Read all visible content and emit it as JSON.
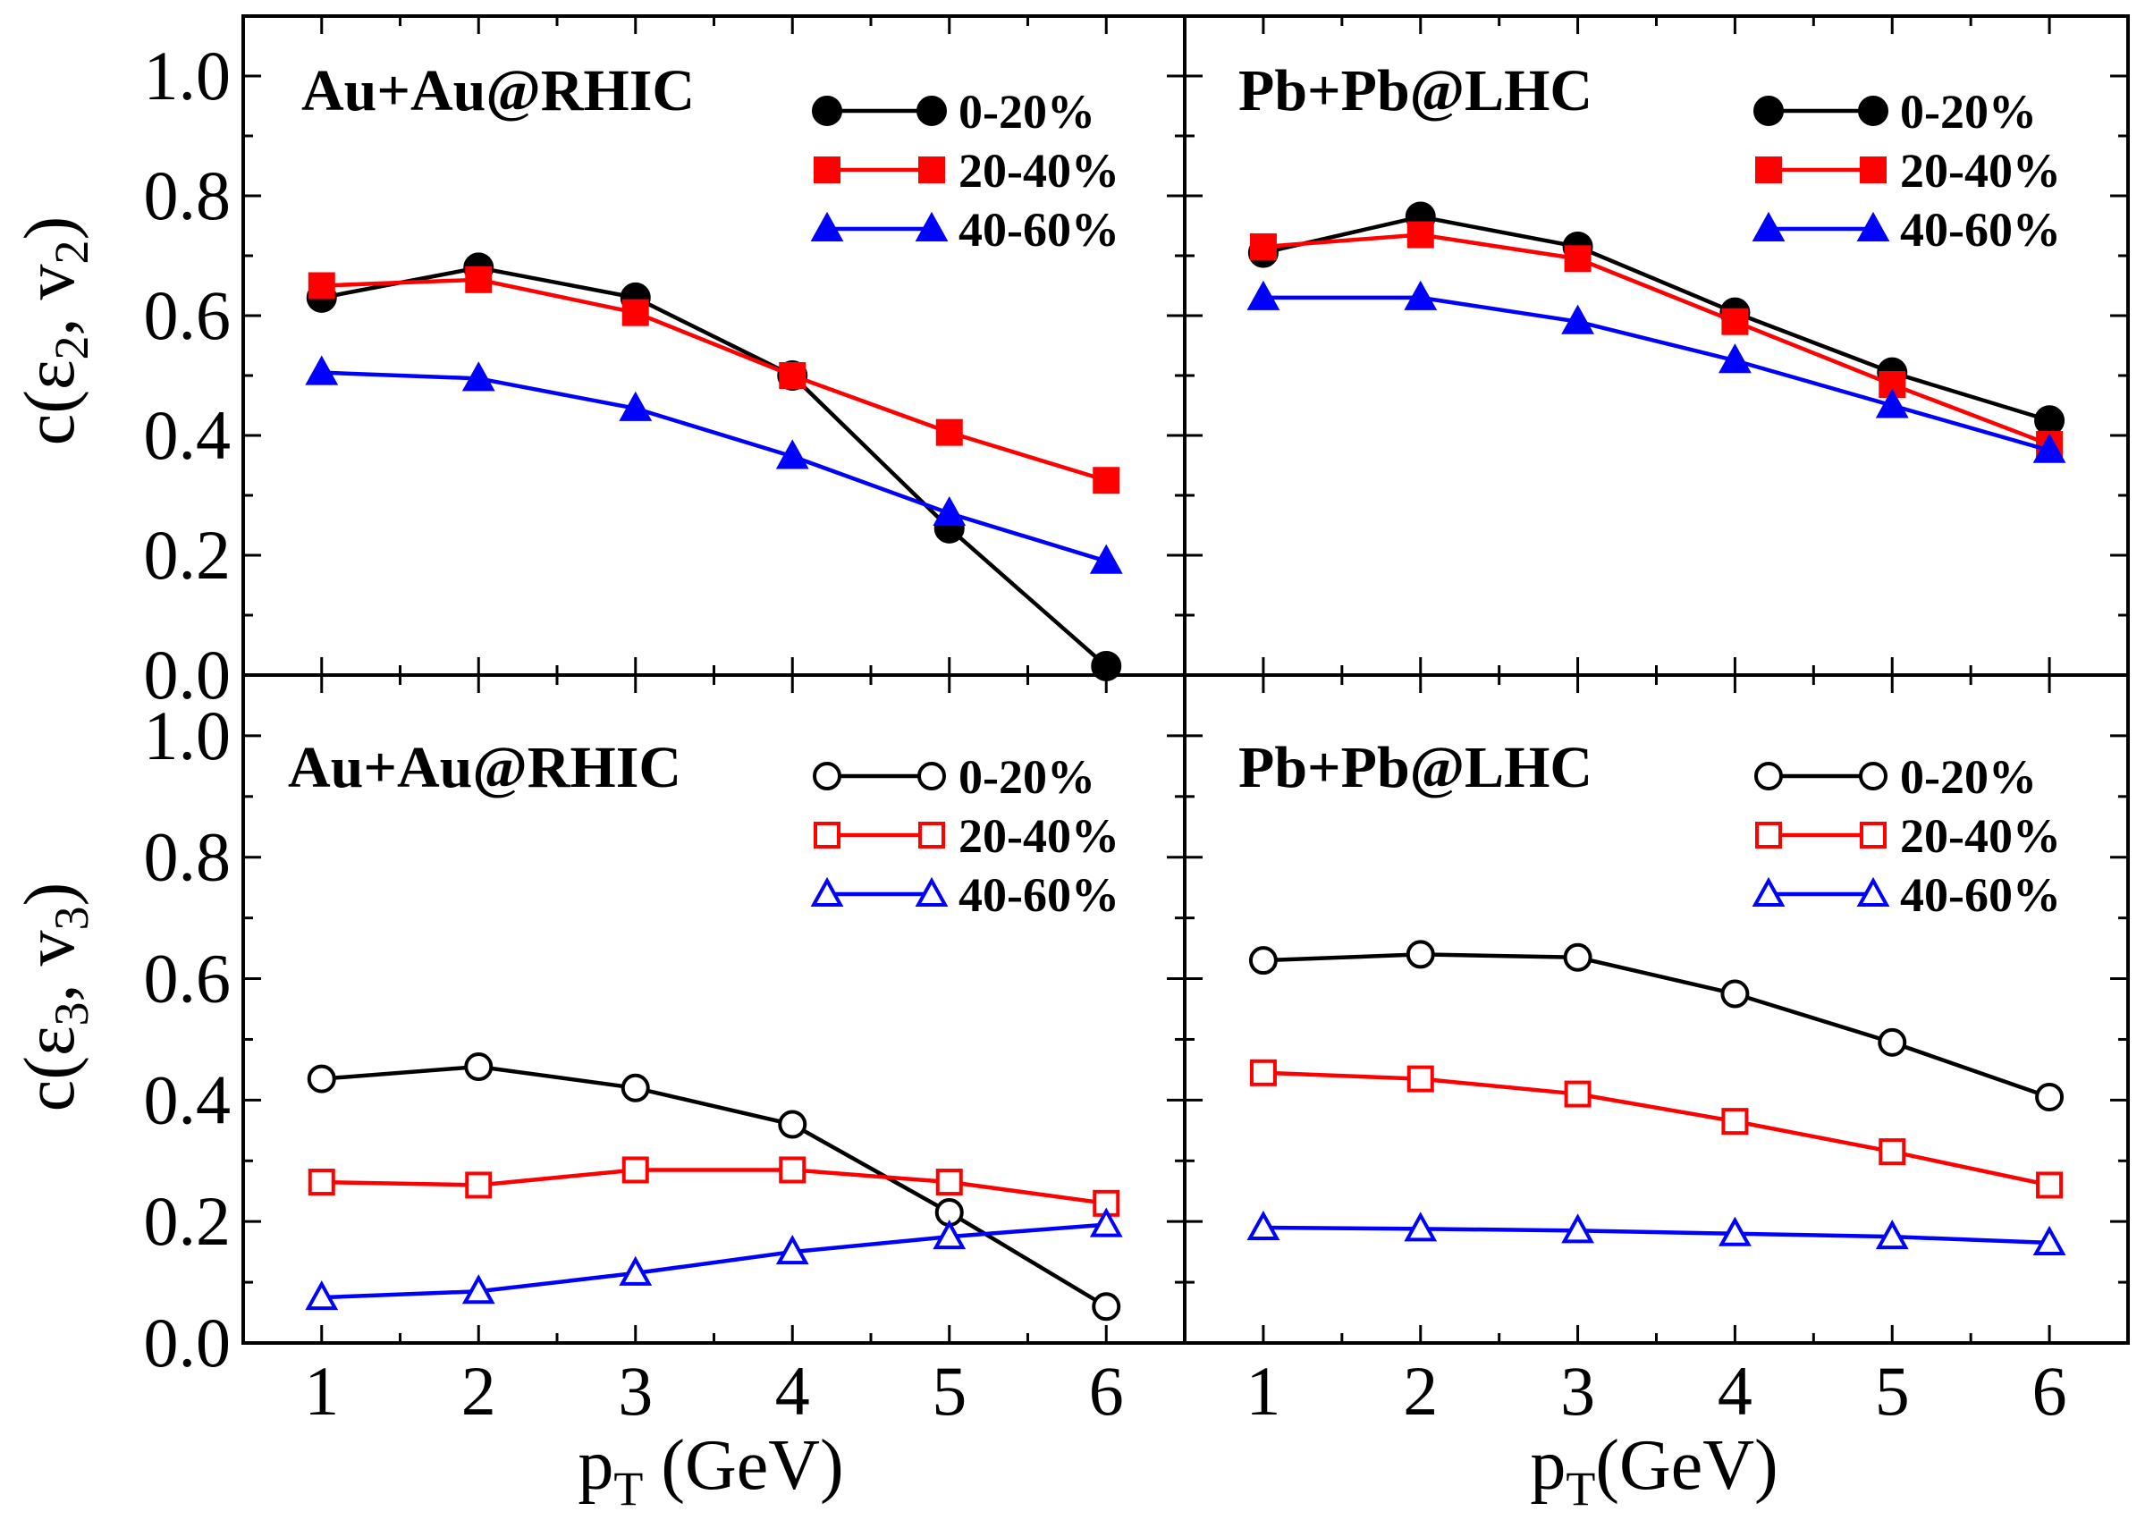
{
  "figure": {
    "y_labels": {
      "top": {
        "prefix": "c(",
        "eps": "ε",
        "eps_sub": "2",
        "comma": ", v",
        "v_sub": "2",
        "suffix": ")"
      },
      "bottom": {
        "prefix": "c(",
        "eps": "ε",
        "eps_sub": "3",
        "comma": ", v",
        "v_sub": "3",
        "suffix": ")"
      }
    },
    "x_labels": {
      "left": {
        "main": "p",
        "sub": "T",
        "rest": " (GeV)"
      },
      "right": {
        "main": "p",
        "sub": "T",
        "rest": "(GeV)"
      }
    },
    "y_tick_labels": [
      "0.0",
      "0.2",
      "0.4",
      "0.6",
      "0.8",
      "1.0"
    ],
    "x_tick_labels": [
      "1",
      "2",
      "3",
      "4",
      "5",
      "6"
    ]
  },
  "chart_data": [
    {
      "type": "line",
      "panel": "top-left",
      "title": "Au+Au@RHIC",
      "ylabel": "c(ε2, v2)",
      "xlabel": "",
      "xlim": [
        0.5,
        6.5
      ],
      "ylim": [
        0.0,
        1.1
      ],
      "x": [
        1,
        2,
        3,
        4,
        5,
        6
      ],
      "legend": "top-right",
      "series": [
        {
          "name": "0-20%",
          "color": "#000000",
          "marker": "circle",
          "filled": true,
          "values": [
            0.63,
            0.68,
            0.63,
            0.5,
            0.245,
            0.015
          ]
        },
        {
          "name": "20-40%",
          "color": "#ff0000",
          "marker": "square",
          "filled": true,
          "values": [
            0.65,
            0.66,
            0.605,
            0.5,
            0.405,
            0.325
          ]
        },
        {
          "name": "40-60%",
          "color": "#0000ff",
          "marker": "triangle",
          "filled": true,
          "values": [
            0.505,
            0.495,
            0.445,
            0.365,
            0.27,
            0.19
          ]
        }
      ]
    },
    {
      "type": "line",
      "panel": "top-right",
      "title": "Pb+Pb@LHC",
      "ylabel": "",
      "xlabel": "",
      "xlim": [
        0.5,
        6.5
      ],
      "ylim": [
        0.0,
        1.1
      ],
      "x": [
        1,
        2,
        3,
        4,
        5,
        6
      ],
      "legend": "top-right",
      "series": [
        {
          "name": "0-20%",
          "color": "#000000",
          "marker": "circle",
          "filled": true,
          "values": [
            0.705,
            0.765,
            0.715,
            0.605,
            0.505,
            0.425
          ]
        },
        {
          "name": "20-40%",
          "color": "#ff0000",
          "marker": "square",
          "filled": true,
          "values": [
            0.715,
            0.735,
            0.695,
            0.59,
            0.485,
            0.385
          ]
        },
        {
          "name": "40-60%",
          "color": "#0000ff",
          "marker": "triangle",
          "filled": true,
          "values": [
            0.63,
            0.63,
            0.59,
            0.525,
            0.45,
            0.375
          ]
        }
      ]
    },
    {
      "type": "line",
      "panel": "bottom-left",
      "title": "Au+Au@RHIC",
      "ylabel": "c(ε3, v3)",
      "xlabel": "pT (GeV)",
      "xlim": [
        0.5,
        6.5
      ],
      "ylim": [
        0.0,
        1.1
      ],
      "x": [
        1,
        2,
        3,
        4,
        5,
        6
      ],
      "legend": "top-right",
      "series": [
        {
          "name": "0-20%",
          "color": "#000000",
          "marker": "circle",
          "filled": false,
          "values": [
            0.435,
            0.455,
            0.42,
            0.36,
            0.215,
            0.06
          ]
        },
        {
          "name": "20-40%",
          "color": "#ff0000",
          "marker": "square",
          "filled": false,
          "values": [
            0.265,
            0.26,
            0.285,
            0.285,
            0.265,
            0.23
          ]
        },
        {
          "name": "40-60%",
          "color": "#0000ff",
          "marker": "triangle",
          "filled": false,
          "values": [
            0.075,
            0.085,
            0.115,
            0.15,
            0.175,
            0.195
          ]
        }
      ]
    },
    {
      "type": "line",
      "panel": "bottom-right",
      "title": "Pb+Pb@LHC",
      "ylabel": "",
      "xlabel": "pT(GeV)",
      "xlim": [
        0.5,
        6.5
      ],
      "ylim": [
        0.0,
        1.1
      ],
      "x": [
        1,
        2,
        3,
        4,
        5,
        6
      ],
      "legend": "top-right",
      "series": [
        {
          "name": "0-20%",
          "color": "#000000",
          "marker": "circle",
          "filled": false,
          "values": [
            0.63,
            0.64,
            0.635,
            0.575,
            0.495,
            0.405
          ]
        },
        {
          "name": "20-40%",
          "color": "#ff0000",
          "marker": "square",
          "filled": false,
          "values": [
            0.445,
            0.435,
            0.41,
            0.365,
            0.315,
            0.26
          ]
        },
        {
          "name": "40-60%",
          "color": "#0000ff",
          "marker": "triangle",
          "filled": false,
          "values": [
            0.19,
            0.188,
            0.185,
            0.18,
            0.175,
            0.165
          ]
        }
      ]
    }
  ]
}
